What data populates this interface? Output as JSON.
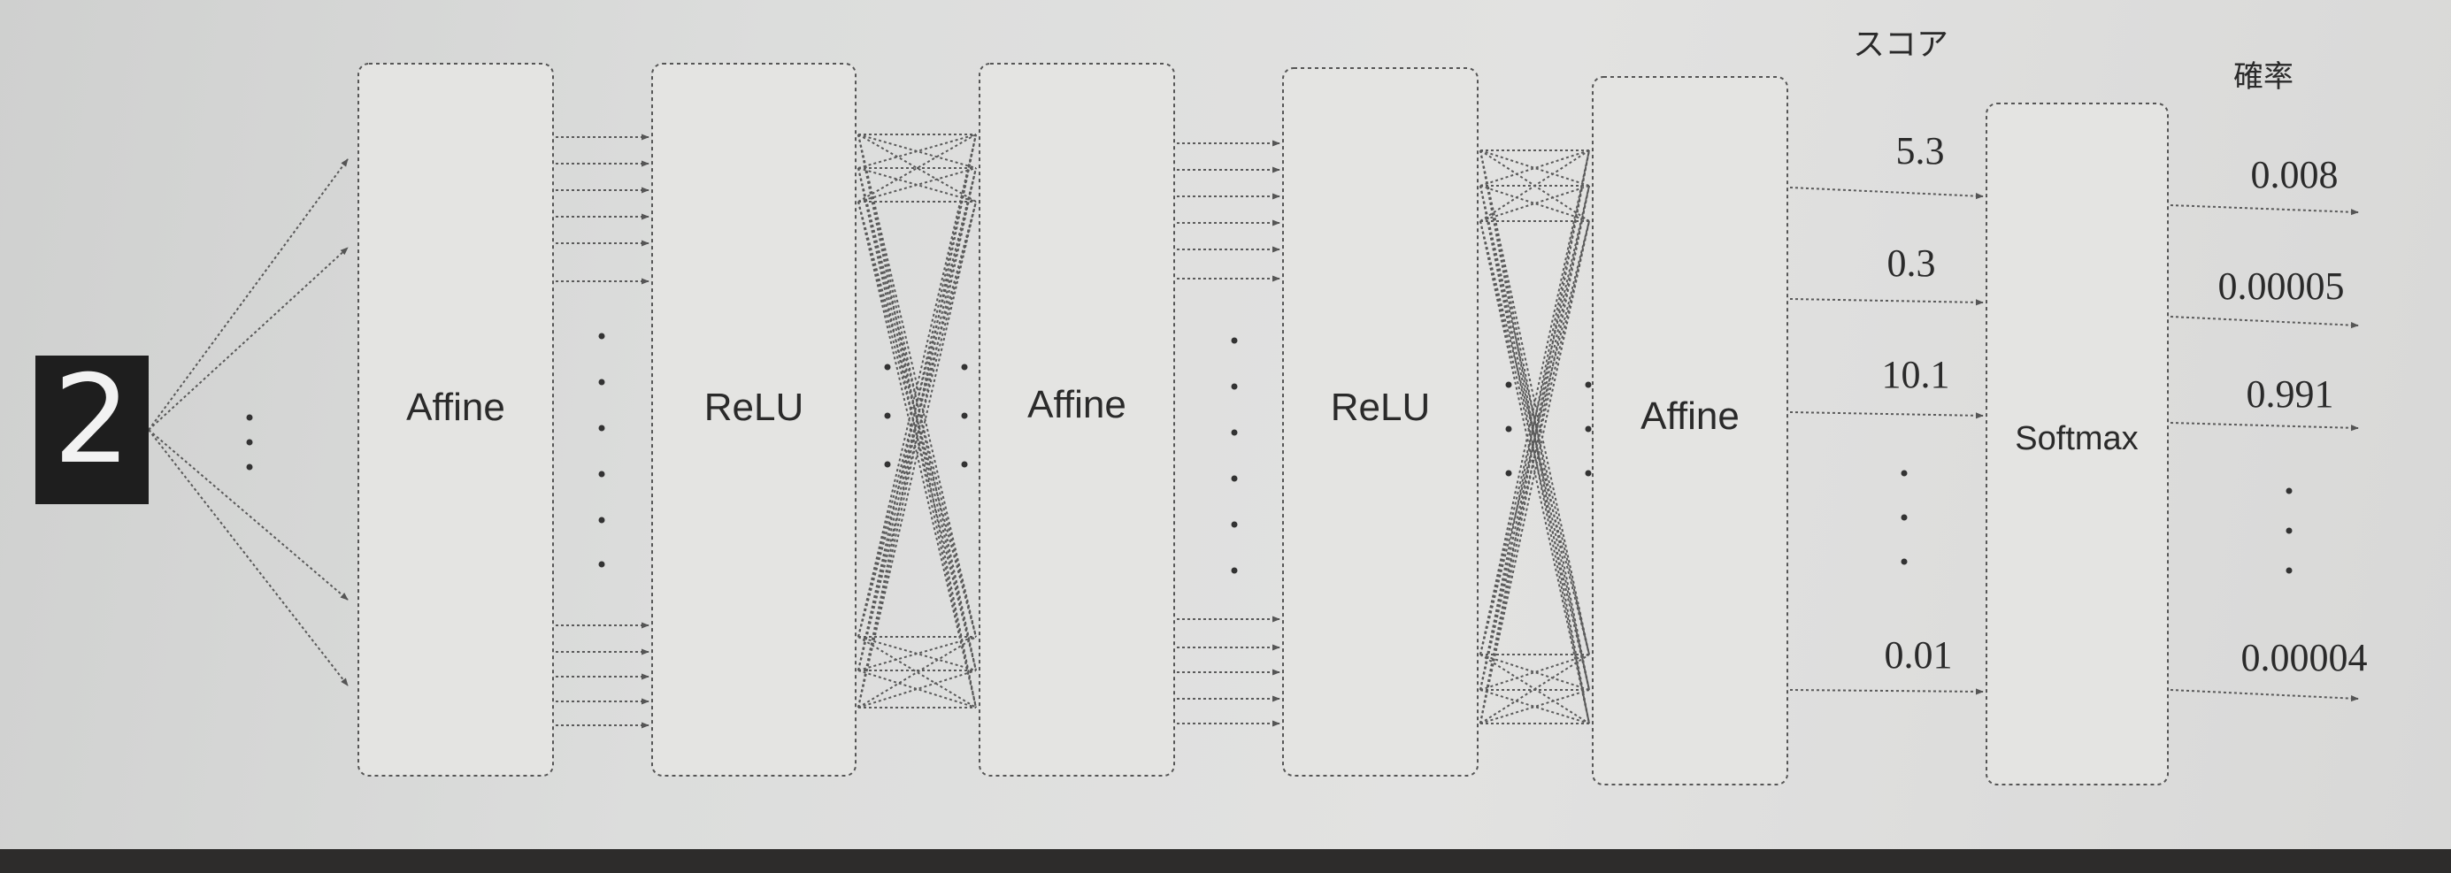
{
  "input": {
    "digit": "2"
  },
  "layers": [
    {
      "id": "affine-1",
      "label": "Affine"
    },
    {
      "id": "relu-1",
      "label": "ReLU"
    },
    {
      "id": "affine-2",
      "label": "Affine"
    },
    {
      "id": "relu-2",
      "label": "ReLU"
    },
    {
      "id": "affine-3",
      "label": "Affine"
    },
    {
      "id": "softmax",
      "label": "Softmax"
    }
  ],
  "headers": {
    "score": "スコア",
    "probability": "確率"
  },
  "scores": [
    "5.3",
    "0.3",
    "10.1",
    "0.01"
  ],
  "probabilities": [
    "0.008",
    "0.00005",
    "0.991",
    "0.00004"
  ]
}
